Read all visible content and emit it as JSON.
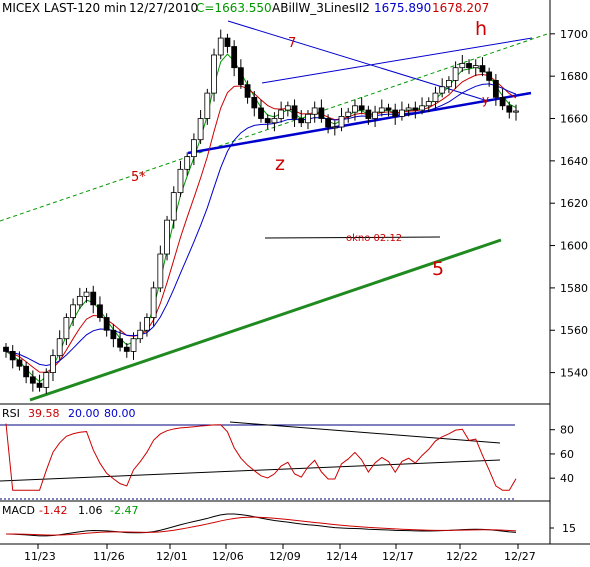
{
  "header": {
    "symbol": "MICEX LAST-120 min",
    "date": "12/27/2010",
    "close_label": "C=1663.550",
    "indicator_name": "ABillW_3LinesII2",
    "indicator_val1": "1675.890",
    "indicator_val2": "1678.207"
  },
  "colors": {
    "background": "#ffffff",
    "axis": "#000000",
    "blue": "#0000cc",
    "green": "#009900",
    "red": "#cc0000",
    "dark_green": "#1f8a1f",
    "navy": "#000080"
  },
  "chart_data": [
    {
      "type": "line",
      "panel": "price",
      "title": "MICEX LAST-120 min",
      "ylim": [
        1528,
        1707
      ],
      "y_ticks": [
        1540,
        1560,
        1580,
        1600,
        1620,
        1640,
        1660,
        1680,
        1700
      ],
      "x_tick_labels": [
        "11/23",
        "11/26",
        "12/01",
        "12/06",
        "12/09",
        "12/14",
        "12/17",
        "12/22",
        "12/27"
      ],
      "grid": false,
      "annotations": [
        {
          "label": "h",
          "color": "#cc0000"
        },
        {
          "label": "z",
          "color": "#cc0000"
        },
        {
          "label": "5",
          "color": "#cc0000"
        },
        {
          "label": "5*",
          "color": "#cc0000"
        },
        {
          "label": "7",
          "color": "#cc0000"
        },
        {
          "label": "y",
          "color": "#cc0000"
        },
        {
          "label": "okno 02.12",
          "color": "#cc0000"
        }
      ],
      "close_series": [
        1550,
        1546,
        1543,
        1538,
        1535,
        1533,
        1540,
        1548,
        1556,
        1566,
        1572,
        1576,
        1578,
        1572,
        1566,
        1560,
        1556,
        1552,
        1550,
        1556,
        1560,
        1566,
        1580,
        1596,
        1612,
        1625,
        1636,
        1642,
        1650,
        1660,
        1672,
        1690,
        1698,
        1694,
        1684,
        1676,
        1670,
        1665,
        1660,
        1658,
        1660,
        1664,
        1666,
        1660,
        1658,
        1662,
        1665,
        1660,
        1656,
        1656,
        1661,
        1663,
        1666,
        1664,
        1660,
        1663,
        1665,
        1664,
        1661,
        1664,
        1665,
        1664,
        1666,
        1668,
        1672,
        1675,
        1678,
        1684,
        1686,
        1684,
        1685,
        1682,
        1678,
        1670,
        1666,
        1663,
        1663.55
      ]
    },
    {
      "type": "line",
      "panel": "RSI",
      "title": "RSI",
      "values_label": [
        "39.58",
        "20.00",
        "80.00"
      ],
      "ylim": [
        22,
        88
      ],
      "y_ticks": [
        40,
        60,
        80
      ],
      "levels": [
        20,
        80
      ]
    },
    {
      "type": "line",
      "panel": "MACD",
      "title": "MACD",
      "values_label": [
        "-1.42",
        "1.06",
        "-2.47"
      ],
      "y_ticks": [
        15
      ]
    }
  ]
}
